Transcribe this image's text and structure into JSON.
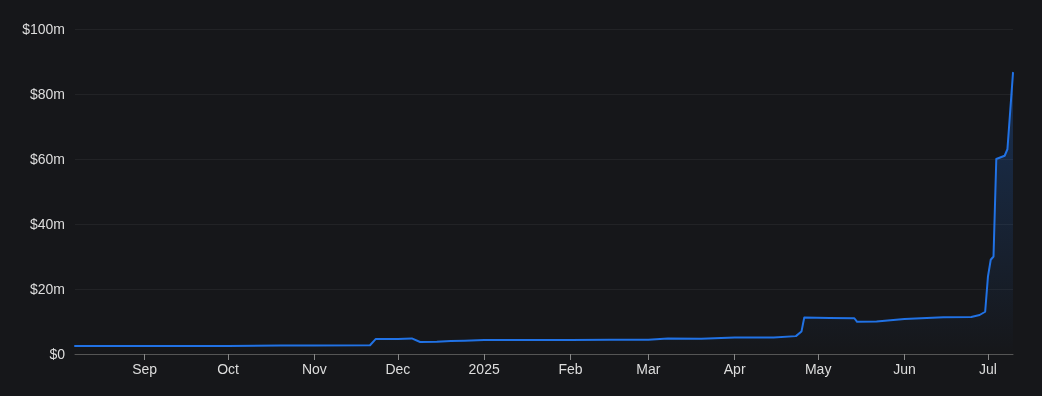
{
  "chart_data": {
    "type": "area",
    "x": [
      "2024-08-07",
      "2024-09-01",
      "2024-10-01",
      "2024-10-20",
      "2024-11-01",
      "2024-11-21",
      "2024-11-23",
      "2024-12-01",
      "2024-12-06",
      "2024-12-09",
      "2024-12-15",
      "2024-12-20",
      "2024-12-25",
      "2025-01-01",
      "2025-01-15",
      "2025-02-01",
      "2025-02-15",
      "2025-03-01",
      "2025-03-08",
      "2025-03-20",
      "2025-04-01",
      "2025-04-15",
      "2025-04-23",
      "2025-04-25",
      "2025-04-26",
      "2025-05-05",
      "2025-05-14",
      "2025-05-15",
      "2025-05-22",
      "2025-06-01",
      "2025-06-15",
      "2025-06-25",
      "2025-06-28",
      "2025-06-30",
      "2025-07-01",
      "2025-07-02",
      "2025-07-03",
      "2025-07-04",
      "2025-07-07",
      "2025-07-08",
      "2025-07-10"
    ],
    "series": [
      {
        "color": "#2172e5",
        "values": [
          2.5,
          2.5,
          2.5,
          2.6,
          2.6,
          2.7,
          4.6,
          4.6,
          4.8,
          3.7,
          3.8,
          4.0,
          4.1,
          4.3,
          4.3,
          4.3,
          4.4,
          4.4,
          4.8,
          4.7,
          5.1,
          5.1,
          5.5,
          6.9,
          11.2,
          11.1,
          11.0,
          9.9,
          10.0,
          10.8,
          11.3,
          11.4,
          12.0,
          13.0,
          23.8,
          29.0,
          30.0,
          60.0,
          61.0,
          63.0,
          86.5
        ]
      }
    ],
    "xlim": [
      "2024-08-07",
      "2025-07-10"
    ],
    "xticks": [
      {
        "value": "2024-09-01",
        "label": "Sep"
      },
      {
        "value": "2024-10-01",
        "label": "Oct"
      },
      {
        "value": "2024-11-01",
        "label": "Nov"
      },
      {
        "value": "2024-12-01",
        "label": "Dec"
      },
      {
        "value": "2025-01-01",
        "label": "2025"
      },
      {
        "value": "2025-02-01",
        "label": "Feb"
      },
      {
        "value": "2025-03-01",
        "label": "Mar"
      },
      {
        "value": "2025-04-01",
        "label": "Apr"
      },
      {
        "value": "2025-05-01",
        "label": "May"
      },
      {
        "value": "2025-06-01",
        "label": "Jun"
      },
      {
        "value": "2025-07-01",
        "label": "Jul"
      }
    ],
    "ylim": [
      0,
      100
    ],
    "yticks": [
      {
        "value": 0,
        "label": "$0"
      },
      {
        "value": 20,
        "label": "$20m"
      },
      {
        "value": 40,
        "label": "$40m"
      },
      {
        "value": 60,
        "label": "$60m"
      },
      {
        "value": 80,
        "label": "$80m"
      },
      {
        "value": 100,
        "label": "$100m"
      }
    ],
    "grid": "y",
    "marker": "none",
    "line_style": "solid"
  }
}
